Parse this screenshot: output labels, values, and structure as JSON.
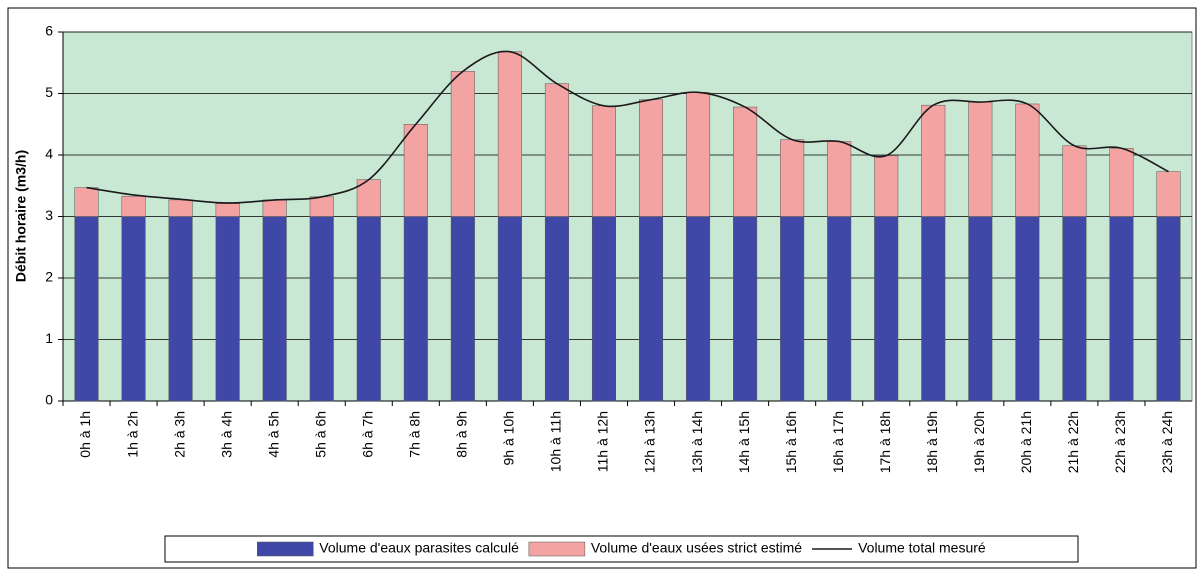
{
  "chart_data": {
    "type": "bar",
    "y_label": "Débit horaire (m3/h)",
    "categories": [
      "0h à 1h",
      "1h à 2h",
      "2h à 3h",
      "3h à 4h",
      "4h à 5h",
      "5h à 6h",
      "6h à 7h",
      "7h à 8h",
      "8h à 9h",
      "9h à 10h",
      "10h à 11h",
      "11h à 12h",
      "12h à 13h",
      "13h à 14h",
      "14h à 15h",
      "15h à 16h",
      "16h à 17h",
      "17h à 18h",
      "18h à 19h",
      "19h à 20h",
      "20h à 21h",
      "21h à 22h",
      "22h à 23h",
      "23h à 24h"
    ],
    "series": [
      {
        "name": "Volume d'eaux parasites calculé",
        "color": "#3f48a6",
        "type": "bar",
        "values": [
          3,
          3,
          3,
          3,
          3,
          3,
          3,
          3,
          3,
          3,
          3,
          3,
          3,
          3,
          3,
          3,
          3,
          3,
          3,
          3,
          3,
          3,
          3,
          3
        ]
      },
      {
        "name": "Volume d'eaux usées strict estimé",
        "color": "#f4a3a3",
        "type": "bar",
        "values": [
          0.47,
          0.33,
          0.27,
          0.21,
          0.27,
          0.32,
          0.6,
          1.5,
          2.36,
          2.68,
          2.16,
          1.8,
          1.9,
          2.02,
          1.78,
          1.25,
          1.22,
          0.99,
          1.81,
          1.86,
          1.83,
          1.15,
          1.11,
          0.73
        ]
      },
      {
        "name": "Volume total mesuré",
        "color": "#1a1a1a",
        "type": "line",
        "values": [
          3.47,
          3.35,
          3.28,
          3.22,
          3.27,
          3.32,
          3.6,
          4.5,
          5.36,
          5.68,
          5.16,
          4.8,
          4.9,
          5.02,
          4.78,
          4.25,
          4.22,
          3.99,
          4.81,
          4.86,
          4.83,
          4.15,
          4.11,
          3.73
        ]
      }
    ],
    "stacked": true,
    "ylim": [
      0,
      6
    ],
    "yticks": [
      0,
      1,
      2,
      3,
      4,
      5,
      6
    ],
    "grid": true,
    "legend": "bottom",
    "plot_color": "#c9e8d4"
  }
}
